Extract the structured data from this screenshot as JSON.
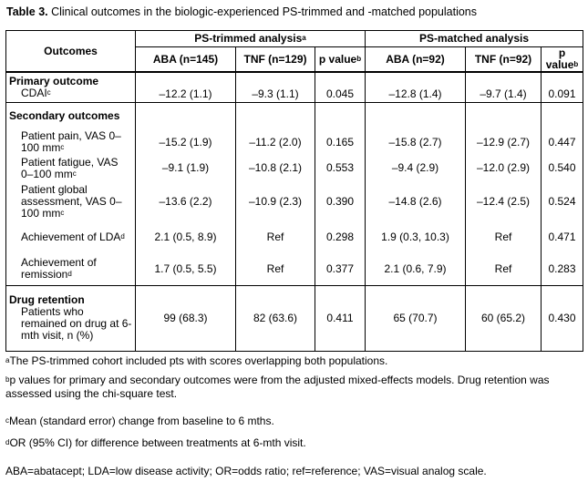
{
  "title": {
    "label": "Table 3.",
    "text": " Clinical outcomes in the biologic-experienced PS-trimmed and -matched populations"
  },
  "header": {
    "outcomes": "Outcomes",
    "group1": "PS-trimmed analysis",
    "group1_sup": "a",
    "group2": "PS-matched analysis",
    "cols": [
      "ABA (n=145)",
      "TNF (n=129)",
      "p value",
      "ABA (n=92)",
      "TNF (n=92)",
      "p value"
    ],
    "p_sup": "b"
  },
  "sections": {
    "primary": {
      "label": "Primary outcome",
      "rows": [
        {
          "label": "CDAI",
          "sup": "c",
          "values": [
            "–12.2 (1.1)",
            "–9.3 (1.1)",
            "0.045",
            "–12.8 (1.4)",
            "–9.7 (1.4)",
            "0.091"
          ]
        }
      ]
    },
    "secondary": {
      "label": "Secondary outcomes",
      "rows": [
        {
          "label": "Patient pain, VAS 0–100 mm",
          "sup": "c",
          "values": [
            "–15.2 (1.9)",
            "–11.2 (2.0)",
            "0.165",
            "–15.8 (2.7)",
            "–12.9 (2.7)",
            "0.447"
          ]
        },
        {
          "label": "Patient fatigue, VAS 0–100 mm",
          "sup": "c",
          "values": [
            "–9.1 (1.9)",
            "–10.8 (2.1)",
            "0.553",
            "–9.4 (2.9)",
            "–12.0 (2.9)",
            "0.540"
          ]
        },
        {
          "label": "Patient global assessment, VAS 0–100 mm",
          "sup": "c",
          "values": [
            "–13.6 (2.2)",
            "–10.9 (2.3)",
            "0.390",
            "–14.8 (2.6)",
            "–12.4 (2.5)",
            "0.524"
          ]
        },
        {
          "label": "Achievement of LDA",
          "sup": "d",
          "values": [
            "2.1 (0.5, 8.9)",
            "Ref",
            "0.298",
            "1.9 (0.3, 10.3)",
            "Ref",
            "0.471"
          ]
        },
        {
          "label": "Achievement of remission",
          "sup": "d",
          "values": [
            "1.7 (0.5, 5.5)",
            "Ref",
            "0.377",
            "2.1 (0.6, 7.9)",
            "Ref",
            "0.283"
          ]
        }
      ]
    },
    "retention": {
      "label": "Drug retention",
      "rows": [
        {
          "label": "Patients who remained on drug at 6-mth visit, n (%)",
          "sup": "",
          "values": [
            "99 (68.3)",
            "82 (63.6)",
            "0.411",
            "65 (70.7)",
            "60 (65.2)",
            "0.430"
          ]
        }
      ]
    }
  },
  "footnotes": [
    {
      "mark": "a",
      "text": "The PS-trimmed cohort included pts with scores overlapping both populations."
    },
    {
      "mark": "b",
      "text": "p values for primary and secondary outcomes were from the adjusted mixed-effects models. Drug retention was assessed using the chi-square test."
    },
    {
      "mark": "c",
      "text": "Mean (standard error) change from baseline to 6 mths."
    },
    {
      "mark": "d",
      "text": "OR (95% CI) for difference between treatments at 6-mth visit."
    },
    {
      "mark": "",
      "text": "ABA=abatacept; LDA=low disease activity; OR=odds ratio; ref=reference; VAS=visual analog scale."
    }
  ]
}
